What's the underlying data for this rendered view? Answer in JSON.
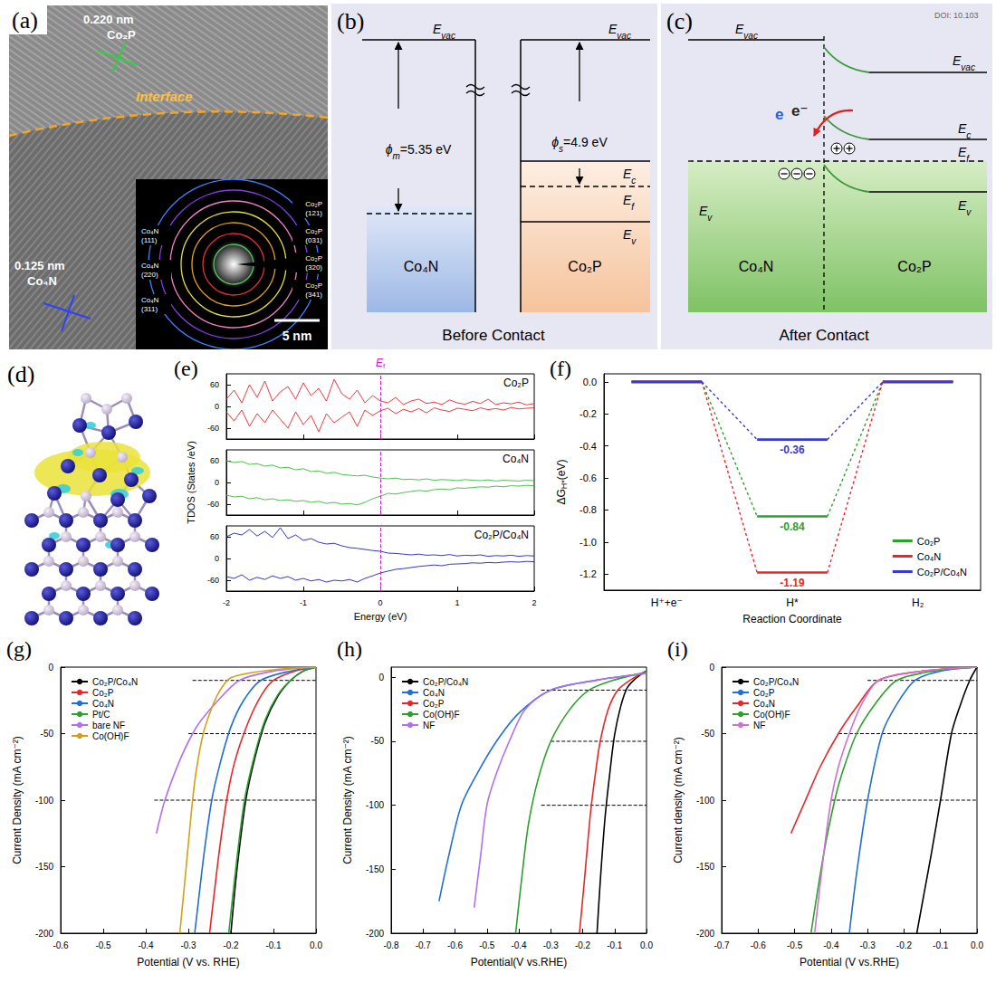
{
  "diagrams": {
    "a": {
      "title": "(a)",
      "lattice": [
        {
          "spacing": "0.220 nm",
          "phase": "Co₂P"
        },
        {
          "spacing": "0.125 nm",
          "phase": "Co₄N"
        }
      ],
      "interface": "Interface",
      "saed": [
        {
          "phase": "Co₂P",
          "plane": "(121)"
        },
        {
          "phase": "Co₂P",
          "plane": "(031)"
        },
        {
          "phase": "Co₂P",
          "plane": "(320)"
        },
        {
          "phase": "Co₂P",
          "plane": "(341)"
        },
        {
          "phase": "Co₄N",
          "plane": "(111)"
        },
        {
          "phase": "Co₄N",
          "plane": "(220)"
        },
        {
          "phase": "Co₄N",
          "plane": "(311)"
        }
      ],
      "scale_bar": "5 nm"
    },
    "b": {
      "title": "(b)",
      "caption": "Before Contact",
      "metal": "Co₄N",
      "semiconductor": "Co₂P",
      "E_vac": {
        "text": "E",
        "sub": "vac"
      },
      "phi_m": {
        "text": "ϕ",
        "sub": "m",
        "after": "=5.35 eV"
      },
      "phi_s": {
        "text": "ϕ",
        "sub": "s",
        "after": "=4.9 eV"
      },
      "E_c": {
        "text": "E",
        "sub": "c"
      },
      "E_f": {
        "text": "E",
        "sub": "f"
      },
      "E_v": {
        "text": "E",
        "sub": "v"
      }
    },
    "c": {
      "title": "(c)",
      "caption": "After Contact",
      "metal": "Co₄N",
      "semiconductor": "Co₂P",
      "E_vac": {
        "text": "E",
        "sub": "vac"
      },
      "E_c": {
        "text": "E",
        "sub": "c"
      },
      "E_f": {
        "text": "E",
        "sub": "f"
      },
      "E_v": {
        "text": "E",
        "sub": "v"
      },
      "electrons": [
        "e",
        "e⁻"
      ],
      "watermark": "DOI: 10.103"
    },
    "d": {
      "title": "(d)"
    }
  },
  "chart_data": [
    {
      "type": "line",
      "title": "(e)",
      "xlabel": "Energy (eV)",
      "ylabel": "TDOS (States /eV)",
      "grid": false,
      "xlim": [
        -2,
        2
      ],
      "xticks": [
        -2,
        -1,
        0,
        1,
        2
      ],
      "fermi_level": {
        "x": 0,
        "label": {
          "text": "E",
          "sub": "f"
        }
      },
      "x": [
        -2,
        -1.9,
        -1.8,
        -1.7,
        -1.6,
        -1.5,
        -1.4,
        -1.3,
        -1.2,
        -1.1,
        -1,
        -0.9,
        -0.8,
        -0.7,
        -0.6,
        -0.5,
        -0.4,
        -0.3,
        -0.2,
        -0.1,
        0,
        0.1,
        0.2,
        0.3,
        0.4,
        0.5,
        0.6,
        0.7,
        0.8,
        0.9,
        1,
        1.1,
        1.2,
        1.3,
        1.4,
        1.5,
        1.6,
        1.7,
        1.8,
        1.9,
        2
      ],
      "panels": [
        {
          "label": "Co₂P",
          "color": "#e8262a",
          "ylim": [
            -90,
            90
          ],
          "yticks": [
            -60,
            0,
            60
          ],
          "tick_labels": "y",
          "spin_up": [
            20,
            45,
            10,
            60,
            25,
            70,
            15,
            40,
            55,
            20,
            65,
            30,
            50,
            15,
            75,
            35,
            20,
            45,
            10,
            30,
            15,
            10,
            25,
            5,
            15,
            20,
            8,
            12,
            5,
            18,
            10,
            6,
            14,
            8,
            20,
            5,
            10,
            7,
            12,
            4,
            8
          ],
          "spin_down": [
            -15,
            -40,
            -10,
            -55,
            -20,
            -45,
            -10,
            -35,
            -60,
            -15,
            -50,
            -25,
            -70,
            -20,
            -45,
            -30,
            -15,
            -55,
            -10,
            -25,
            -12,
            -5,
            -20,
            -8,
            -15,
            -6,
            -18,
            -4,
            -10,
            -14,
            -5,
            -8,
            -12,
            -4,
            -9,
            -6,
            -10,
            -3,
            -7,
            -5,
            -4
          ]
        },
        {
          "label": "Co₄N",
          "color": "#3cb83c",
          "ylim": [
            -90,
            90
          ],
          "yticks": [
            -60,
            0,
            60
          ],
          "tick_labels": "y",
          "spin_up": [
            60,
            55,
            58,
            50,
            52,
            45,
            48,
            40,
            42,
            35,
            38,
            30,
            32,
            25,
            28,
            22,
            20,
            18,
            20,
            15,
            12,
            10,
            12,
            8,
            9,
            7,
            10,
            6,
            8,
            7,
            5,
            8,
            6,
            5,
            7,
            4,
            6,
            5,
            4,
            6,
            5
          ],
          "spin_down": [
            -35,
            -40,
            -38,
            -45,
            -42,
            -48,
            -45,
            -50,
            -48,
            -52,
            -50,
            -55,
            -52,
            -58,
            -55,
            -60,
            -58,
            -62,
            -55,
            -45,
            -38,
            -30,
            -32,
            -28,
            -25,
            -22,
            -24,
            -20,
            -18,
            -20,
            -15,
            -16,
            -14,
            -12,
            -13,
            -10,
            -12,
            -9,
            -10,
            -8,
            -9
          ]
        },
        {
          "label": "Co₂P/Co₄N",
          "color": "#2020c0",
          "ylim": [
            -90,
            90
          ],
          "yticks": [
            -60,
            0,
            60
          ],
          "spin_up": [
            60,
            70,
            65,
            80,
            62,
            75,
            58,
            85,
            55,
            65,
            50,
            55,
            45,
            40,
            42,
            35,
            30,
            28,
            25,
            22,
            20,
            15,
            14,
            12,
            10,
            12,
            9,
            10,
            8,
            11,
            7,
            9,
            8,
            10,
            6,
            8,
            7,
            9,
            6,
            8,
            7
          ],
          "spin_down": [
            -50,
            -55,
            -45,
            -60,
            -52,
            -58,
            -48,
            -55,
            -50,
            -60,
            -55,
            -62,
            -58,
            -65,
            -60,
            -62,
            -58,
            -65,
            -55,
            -48,
            -40,
            -35,
            -30,
            -28,
            -25,
            -22,
            -20,
            -18,
            -20,
            -16,
            -15,
            -14,
            -12,
            -13,
            -11,
            -12,
            -10,
            -9,
            -10,
            -8,
            -9
          ]
        }
      ]
    },
    {
      "type": "energy_profile",
      "title": "(f)",
      "xlabel": "Reaction Coordinate",
      "ylabel": {
        "text": "ΔG",
        "sub": "H*",
        "after": "(eV)"
      },
      "grid": false,
      "legend": "lower right",
      "categories": [
        "H⁺+e⁻",
        "H*",
        "H₂"
      ],
      "ylim": [
        -1.3,
        0.05
      ],
      "yticks": [
        {
          "value": 0,
          "label": "0.0"
        },
        -0.2,
        -0.4,
        -0.6,
        -0.8,
        {
          "value": -1,
          "label": "-1.0"
        },
        -1.2
      ],
      "series": [
        {
          "name": "Co₂P",
          "color": "#2ca02c",
          "values": [
            0,
            -0.84,
            0
          ],
          "value_labels": [
            null,
            "-0.84",
            null
          ]
        },
        {
          "name": "Co₄N",
          "color": "#e8262a",
          "values": [
            0,
            -1.19,
            0
          ],
          "value_labels": [
            null,
            "-1.19",
            null
          ]
        },
        {
          "name": "Co₂P/Co₄N",
          "color": "#3a3ad0",
          "values": [
            0,
            -0.36,
            0
          ],
          "value_labels": [
            null,
            "-0.36",
            null
          ]
        }
      ]
    },
    {
      "type": "line",
      "title": "(g)",
      "xlabel": "Potential (V vs. RHE)",
      "ylabel": "Current Density (mA cm⁻²)",
      "grid": false,
      "legend": "upper left",
      "xlim": [
        -0.6,
        0
      ],
      "xticks": [
        -0.6,
        -0.5,
        -0.4,
        -0.3,
        -0.2,
        -0.1,
        {
          "value": 0,
          "label": "0.0"
        }
      ],
      "ylim": [
        -200,
        0
      ],
      "yticks": [
        0,
        -50,
        -100,
        -150,
        -200
      ],
      "guides": [
        {
          "y": -10,
          "x": [
            -0.29,
            0
          ]
        },
        {
          "y": -50,
          "x": [
            -0.3,
            0
          ]
        },
        {
          "y": -100,
          "x": [
            -0.38,
            0
          ]
        }
      ],
      "series": [
        {
          "name": "Co₂P/Co₄N",
          "color": "#000000",
          "x": [
            0,
            -0.03,
            -0.06,
            -0.09,
            -0.12,
            -0.145,
            -0.165,
            -0.185,
            -0.2
          ],
          "values": [
            0,
            -3,
            -10,
            -22,
            -42,
            -70,
            -100,
            -150,
            -200
          ]
        },
        {
          "name": "Co₂P",
          "color": "#e8262a",
          "x": [
            0,
            -0.05,
            -0.1,
            -0.13,
            -0.16,
            -0.19,
            -0.21,
            -0.23,
            -0.25
          ],
          "values": [
            0,
            -3,
            -10,
            -22,
            -42,
            -70,
            -100,
            -145,
            -200
          ]
        },
        {
          "name": "Co₄N",
          "color": "#1f6fd4",
          "x": [
            0,
            -0.06,
            -0.13,
            -0.17,
            -0.2,
            -0.225,
            -0.245,
            -0.265,
            -0.285
          ],
          "values": [
            0,
            -3,
            -10,
            -25,
            -45,
            -72,
            -100,
            -145,
            -200
          ]
        },
        {
          "name": "Pt/C",
          "color": "#2ca02c",
          "x": [
            0,
            -0.03,
            -0.06,
            -0.09,
            -0.12,
            -0.145,
            -0.168,
            -0.188,
            -0.205
          ],
          "values": [
            0,
            -3,
            -10,
            -21,
            -40,
            -67,
            -100,
            -150,
            -200
          ]
        },
        {
          "name": "bare NF",
          "color": "#b070f0",
          "x": [
            0,
            -0.1,
            -0.18,
            -0.23,
            -0.27,
            -0.29,
            -0.32,
            -0.355,
            -0.375
          ],
          "values": [
            0,
            -3,
            -10,
            -25,
            -40,
            -50,
            -70,
            -100,
            -125
          ]
        },
        {
          "name": "Co(OH)F",
          "color": "#d4a017",
          "x": [
            0,
            -0.1,
            -0.2,
            -0.23,
            -0.25,
            -0.265,
            -0.28,
            -0.29,
            -0.305,
            -0.32
          ],
          "values": [
            0,
            -2,
            -8,
            -20,
            -35,
            -50,
            -75,
            -100,
            -150,
            -200
          ]
        }
      ]
    },
    {
      "type": "line",
      "title": "(h)",
      "xlabel": "Potential(V vs.RHE)",
      "ylabel": "Current Density (mA cm⁻²)",
      "grid": false,
      "legend": "upper left",
      "xlim": [
        -0.8,
        0
      ],
      "xticks": [
        -0.8,
        -0.7,
        -0.6,
        -0.5,
        -0.4,
        -0.3,
        -0.2,
        -0.1,
        {
          "value": 0,
          "label": "0.0"
        }
      ],
      "ylim": [
        -200,
        8
      ],
      "yticks": [
        0,
        -50,
        -100,
        -150,
        -200
      ],
      "guides": [
        {
          "y": -10,
          "x": [
            -0.33,
            0
          ]
        },
        {
          "y": -50,
          "x": [
            -0.3,
            0
          ]
        },
        {
          "y": -100,
          "x": [
            -0.33,
            0
          ]
        }
      ],
      "series": [
        {
          "name": "Co₂P/Co₄N",
          "color": "#000000",
          "x": [
            0,
            -0.03,
            -0.06,
            -0.08,
            -0.1,
            -0.115,
            -0.13,
            -0.145,
            -0.155
          ],
          "values": [
            5,
            0,
            -8,
            -22,
            -45,
            -75,
            -110,
            -160,
            -200
          ]
        },
        {
          "name": "Co₄N",
          "color": "#1f6fd4",
          "x": [
            0,
            -0.15,
            -0.3,
            -0.4,
            -0.47,
            -0.53,
            -0.58,
            -0.62,
            -0.65
          ],
          "values": [
            3,
            -2,
            -10,
            -28,
            -50,
            -75,
            -100,
            -140,
            -175
          ]
        },
        {
          "name": "Co₂P",
          "color": "#e8262a",
          "x": [
            0,
            -0.05,
            -0.09,
            -0.12,
            -0.145,
            -0.16,
            -0.175,
            -0.195,
            -0.21
          ],
          "values": [
            5,
            -2,
            -10,
            -25,
            -50,
            -75,
            -105,
            -160,
            -200
          ]
        },
        {
          "name": "Co(OH)F",
          "color": "#2ca02c",
          "x": [
            0,
            -0.1,
            -0.18,
            -0.24,
            -0.3,
            -0.34,
            -0.37,
            -0.39,
            -0.41
          ],
          "values": [
            4,
            -2,
            -10,
            -25,
            -50,
            -80,
            -115,
            -155,
            -200
          ]
        },
        {
          "name": "NF",
          "color": "#b070f0",
          "x": [
            0,
            -0.15,
            -0.3,
            -0.38,
            -0.43,
            -0.47,
            -0.5,
            -0.52,
            -0.54
          ],
          "values": [
            3,
            -2,
            -10,
            -25,
            -50,
            -75,
            -100,
            -140,
            -180
          ]
        }
      ]
    },
    {
      "type": "line",
      "title": "(i)",
      "xlabel": "Potential (V vs.RHE)",
      "ylabel": "Current density (mA cm⁻²)",
      "grid": false,
      "legend": "upper left",
      "xlim": [
        -0.7,
        0
      ],
      "xticks": [
        -0.7,
        -0.6,
        -0.5,
        -0.4,
        -0.3,
        -0.2,
        -0.1,
        {
          "value": 0,
          "label": "0.0"
        }
      ],
      "ylim": [
        -200,
        0
      ],
      "yticks": [
        0,
        -50,
        -100,
        -150,
        -200
      ],
      "guides": [
        {
          "y": -10,
          "x": [
            -0.3,
            0
          ]
        },
        {
          "y": -50,
          "x": [
            -0.38,
            0
          ]
        },
        {
          "y": -100,
          "x": [
            -0.4,
            0
          ]
        }
      ],
      "series": [
        {
          "name": "Co₂P/Co₄N",
          "color": "#000000",
          "x": [
            0,
            -0.02,
            -0.045,
            -0.07,
            -0.1,
            -0.125,
            -0.145,
            -0.165
          ],
          "values": [
            0,
            -10,
            -28,
            -50,
            -100,
            -140,
            -170,
            -200
          ]
        },
        {
          "name": "Co₂P",
          "color": "#1f6fd4",
          "x": [
            0,
            -0.1,
            -0.17,
            -0.22,
            -0.26,
            -0.3,
            -0.33,
            -0.35
          ],
          "values": [
            0,
            -3,
            -10,
            -28,
            -50,
            -100,
            -155,
            -200
          ]
        },
        {
          "name": "Co₄N",
          "color": "#e8262a",
          "x": [
            0,
            -0.15,
            -0.27,
            -0.33,
            -0.38,
            -0.43,
            -0.47,
            -0.51
          ],
          "values": [
            0,
            -3,
            -10,
            -30,
            -50,
            -75,
            -100,
            -125
          ]
        },
        {
          "name": "Co(OH)F",
          "color": "#2ca02c",
          "x": [
            0,
            -0.12,
            -0.22,
            -0.28,
            -0.33,
            -0.37,
            -0.39,
            -0.42,
            -0.455
          ],
          "values": [
            0,
            -3,
            -10,
            -28,
            -50,
            -80,
            -100,
            -140,
            -200
          ]
        },
        {
          "name": "NF",
          "color": "#d070d0",
          "x": [
            0,
            -0.15,
            -0.27,
            -0.32,
            -0.35,
            -0.38,
            -0.4,
            -0.42,
            -0.445
          ],
          "values": [
            0,
            -3,
            -10,
            -30,
            -50,
            -75,
            -100,
            -140,
            -200
          ]
        }
      ]
    }
  ]
}
